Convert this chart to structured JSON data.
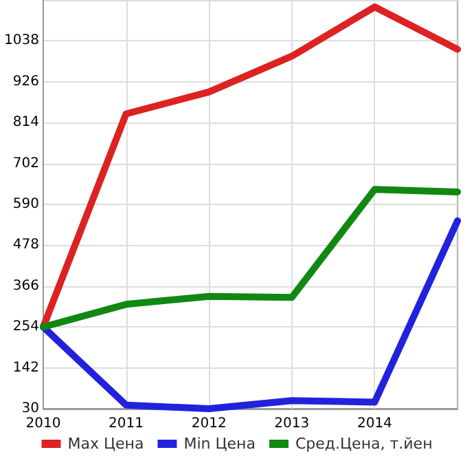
{
  "chart_data": {
    "type": "line",
    "x": [
      2010,
      2011,
      2012,
      2013,
      2014,
      2015
    ],
    "series": [
      {
        "name": "Max Цена",
        "color": "#dd2222",
        "values": [
          254,
          838,
          898,
          996,
          1131,
          1015
        ]
      },
      {
        "name": "Min Цена",
        "color": "#2222dd",
        "values": [
          254,
          40,
          30,
          52,
          48,
          545
        ]
      },
      {
        "name": "Сред.Цена, т.йен",
        "color": "#118811",
        "values": [
          254,
          316,
          338,
          335,
          631,
          624
        ]
      }
    ],
    "xlim": [
      2010,
      2015
    ],
    "xticks": [
      2010,
      2011,
      2012,
      2013,
      2014,
      {
        "value": 2015,
        "label": null
      }
    ],
    "ylim": [
      30,
      1150
    ],
    "yticks": [
      30,
      142,
      254,
      366,
      478,
      590,
      702,
      814,
      926,
      1038,
      {
        "value": 1150,
        "label": null
      }
    ],
    "grid": true,
    "legend": "bottom",
    "marker": "none",
    "line_style": "solid"
  }
}
